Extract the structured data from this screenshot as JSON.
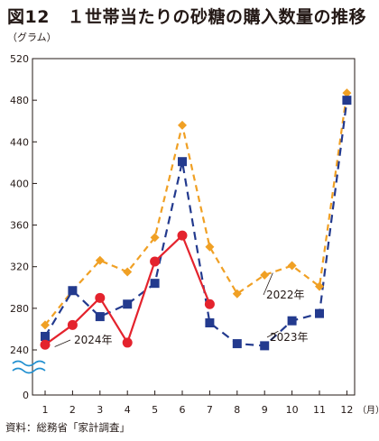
{
  "figure": {
    "title": "図12　１世帯当たりの砂糖の購入数量の推移",
    "unit_label": "（グラム）",
    "source": "資料：総務省「家計調査」"
  },
  "colors": {
    "series_2022": "#f0a024",
    "series_2023": "#233a8e",
    "series_2024": "#e4232d",
    "axis": "#231815"
  },
  "chart_data": {
    "type": "line",
    "title": "",
    "xlabel": "（月）",
    "ylabel": "（グラム）",
    "x": [
      1,
      2,
      3,
      4,
      5,
      6,
      7,
      8,
      9,
      10,
      11,
      12
    ],
    "x_tick_labels": [
      "1",
      "2",
      "3",
      "4",
      "5",
      "6",
      "7",
      "8",
      "9",
      "10",
      "11",
      "12"
    ],
    "y_tick_labels": [
      "0",
      "240",
      "280",
      "320",
      "360",
      "400",
      "440",
      "480",
      "520"
    ],
    "ylim": [
      0,
      520
    ],
    "y_axis_break": "between 0 and 240",
    "grid": false,
    "legend": "labels placed next to each line",
    "series": [
      {
        "name": "2022年",
        "marker": "diamond",
        "line_style": "dashed",
        "values": [
          264,
          297,
          326,
          315,
          348,
          456,
          339,
          294,
          312,
          321,
          301,
          487
        ]
      },
      {
        "name": "2023年",
        "marker": "square",
        "line_style": "dashed",
        "values": [
          253,
          297,
          272,
          284,
          304,
          421,
          266,
          246,
          244,
          268,
          275,
          480
        ]
      },
      {
        "name": "2024年",
        "marker": "circle",
        "line_style": "solid",
        "values": [
          245,
          264,
          290,
          247,
          325,
          350,
          284,
          null,
          null,
          null,
          null,
          null
        ]
      }
    ]
  }
}
